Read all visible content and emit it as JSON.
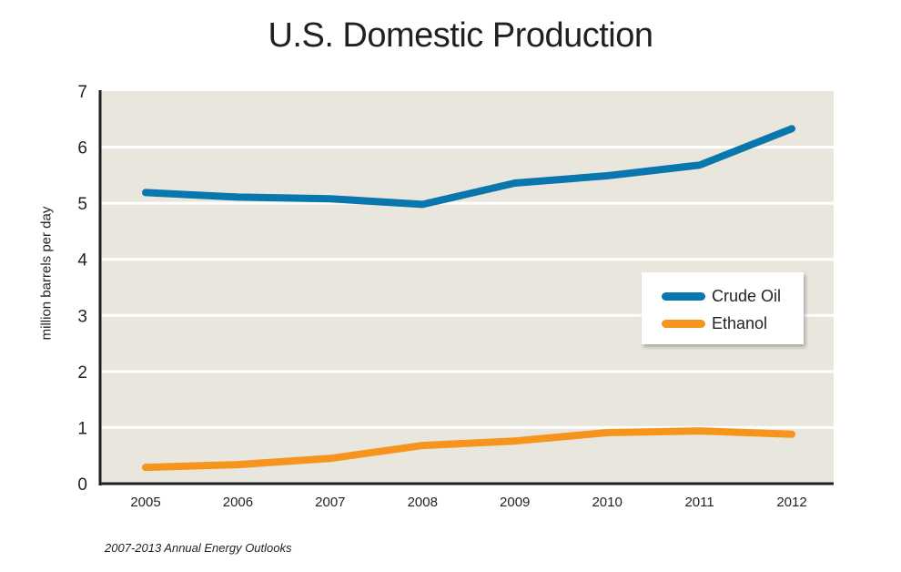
{
  "chart_data": {
    "type": "line",
    "title": "U.S. Domestic Production",
    "xlabel": "",
    "ylabel": "million barrels per day",
    "source": "2007-2013 Annual Energy Outlooks",
    "categories": [
      "2005",
      "2006",
      "2007",
      "2008",
      "2009",
      "2010",
      "2011",
      "2012"
    ],
    "yticks": [
      "0",
      "1",
      "2",
      "3",
      "4",
      "5",
      "6",
      "7"
    ],
    "ylim": [
      0,
      7
    ],
    "grid": true,
    "legend_position": "center-right",
    "series": [
      {
        "name": "Crude Oil",
        "color": "#0a76ae",
        "values": [
          5.19,
          5.11,
          5.08,
          4.98,
          5.36,
          5.49,
          5.68,
          6.33
        ]
      },
      {
        "name": "Ethanol",
        "color": "#f7941d",
        "values": [
          0.29,
          0.34,
          0.45,
          0.68,
          0.76,
          0.91,
          0.94,
          0.88
        ]
      }
    ],
    "colors": {
      "plot_background": "#e9e6dd",
      "gridline": "#ffffff",
      "axis": "#231f20"
    }
  }
}
